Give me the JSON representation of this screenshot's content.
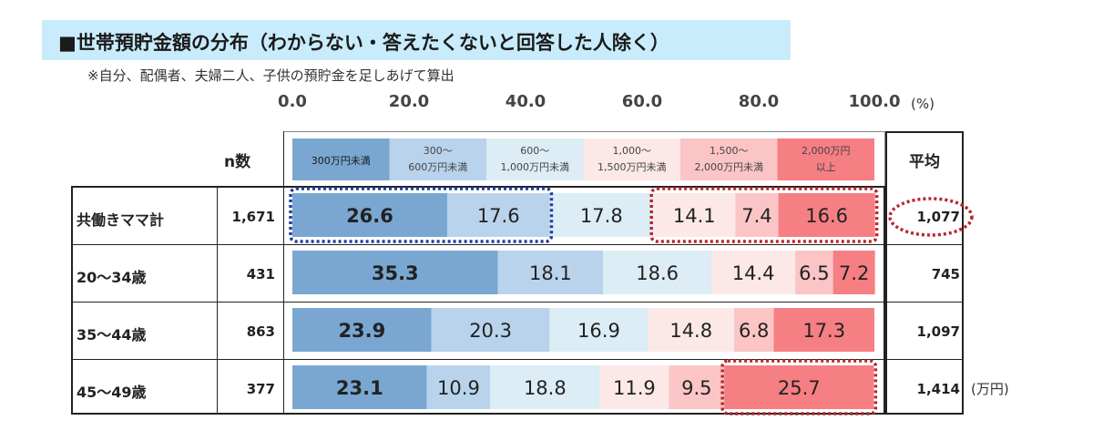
{
  "title": "■世帯預貯金額の分布（わからない・答えたくないと回答した人除く）",
  "subtitle": "※自分、配偶者、夫婦二人、子供の預貯金を足しあげて算出",
  "axis_unit": "(%)",
  "n_header": "n数",
  "avg_header": "平均",
  "avg_unit": "(万円)",
  "colors": [
    "#79a7d1",
    "#b9d3ec",
    "#dcedf5",
    "#fde8e8",
    "#fbc5c5",
    "#f67f84"
  ],
  "highlight_colors": {
    "blue": "#1f3da0",
    "red": "#b8262b"
  },
  "chart_data": {
    "type": "bar",
    "orientation": "horizontal-stacked-100",
    "xlim": [
      0,
      100
    ],
    "x_ticks": [
      "0.0",
      "20.0",
      "40.0",
      "60.0",
      "80.0",
      "100.0"
    ],
    "legend": [
      [
        "300万円未満"
      ],
      [
        "300～",
        "600万円未満"
      ],
      [
        "600～",
        "1,000万円未満"
      ],
      [
        "1,000～",
        "1,500万円未満"
      ],
      [
        "1,500～",
        "2,000万円未満"
      ],
      [
        "2,000万円",
        "以上"
      ]
    ],
    "categories": [
      "共働きママ計",
      "20～34歳",
      "35～44歳",
      "45～49歳"
    ],
    "n": [
      "1,671",
      "431",
      "863",
      "377"
    ],
    "average": [
      "1,077",
      "745",
      "1,097",
      "1,414"
    ],
    "rows": [
      [
        26.6,
        17.6,
        17.8,
        14.1,
        7.4,
        16.6
      ],
      [
        35.3,
        18.1,
        18.6,
        14.4,
        6.5,
        7.2
      ],
      [
        23.9,
        20.3,
        16.9,
        14.8,
        6.8,
        17.3
      ],
      [
        23.1,
        10.9,
        18.8,
        11.9,
        9.5,
        25.7
      ]
    ]
  },
  "rows": [
    {
      "label": "共働きママ計",
      "n": "1,671",
      "avg": "1,077"
    },
    {
      "label": "20～34歳",
      "n": "431",
      "avg": "745"
    },
    {
      "label": "35～44歳",
      "n": "863",
      "avg": "1,097"
    },
    {
      "label": "45～49歳",
      "n": "377",
      "avg": "1,414"
    }
  ]
}
